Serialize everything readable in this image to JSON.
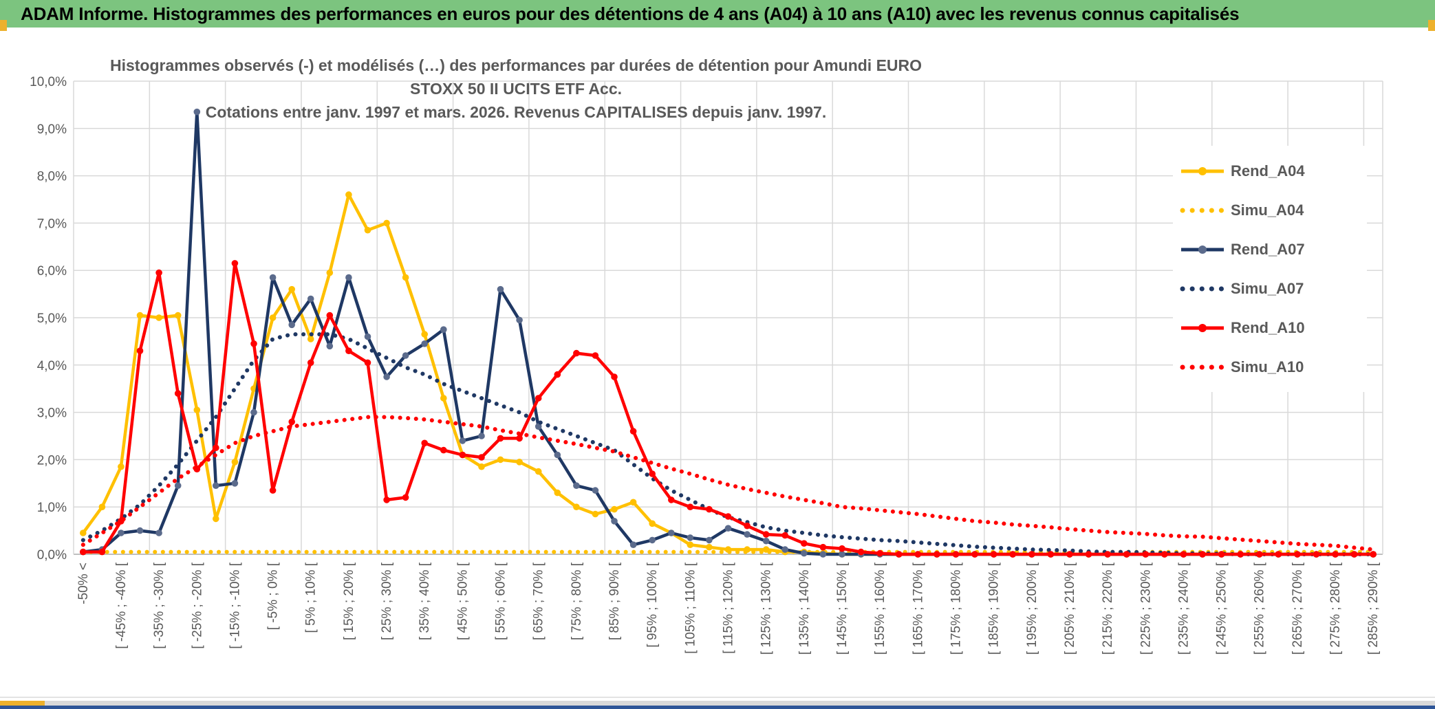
{
  "header": {
    "title": "ADAM Informe. Histogrammes des performances en euros pour des détentions de 4 ans (A04) à 10 ans (A10) avec les revenus connus capitalisés"
  },
  "chart_data": {
    "type": "line",
    "title_line1": "Histogrammes observés (-) et modélisés (…) des performances par durées de détention pour Amundi EURO STOXX 50 II UCITS ETF Acc.",
    "title_line2": "Cotations entre janv. 1997 et mars. 2026. Revenus CAPITALISES depuis janv. 1997.",
    "grid": true,
    "legend_position": "right-inside",
    "n_bins": 69,
    "ylim": [
      0,
      10
    ],
    "ytick_labels": [
      "0,0%",
      "1,0%",
      "2,0%",
      "3,0%",
      "4,0%",
      "5,0%",
      "6,0%",
      "7,0%",
      "8,0%",
      "9,0%",
      "10,0%"
    ],
    "xtick_every": 2,
    "xtick_labels": [
      "-50% <",
      "[ -45% ; -40% [",
      "[ -35% ; -30% [",
      "[ -25% ; -20% [",
      "[ -15% ; -10% [",
      "[ -5% ; 0% [",
      "[ 5% ; 10% [",
      "[ 15% ; 20% [",
      "[ 25% ; 30% [",
      "[ 35% ; 40% [",
      "[ 45% ; 50% [",
      "[ 55% ; 60% [",
      "[ 65% ; 70% [",
      "[ 75% ; 80% [",
      "[ 85% ; 90% [",
      "[ 95% ; 100% [",
      "[ 105% ; 110% [",
      "[ 115% ; 120% [",
      "[ 125% ; 130% [",
      "[ 135% ; 140% [",
      "[ 145% ; 150% [",
      "[ 155% ; 160% [",
      "[ 165% ; 170% [",
      "[ 175% ; 180% [",
      "[ 185% ; 190% [",
      "[ 195% ; 200% [",
      "[ 205% ; 210% [",
      "[ 215% ; 220% [",
      "[ 225% ; 230% [",
      "[ 235% ; 240% [",
      "[ 245% ; 250% [",
      "[ 255% ; 260% [",
      "[ 265% ; 270% [",
      "[ 275% ; 280% [",
      "[ 285% ; 290% ["
    ],
    "series": [
      {
        "name": "Rend_A04",
        "style": "solid",
        "color": "#FFC000",
        "marker_color": "#FFC000",
        "values": [
          0.45,
          1.0,
          1.85,
          5.05,
          5.0,
          5.05,
          3.05,
          0.75,
          1.95,
          3.5,
          5.0,
          5.6,
          4.55,
          5.95,
          7.6,
          6.85,
          7.0,
          5.85,
          4.65,
          3.3,
          2.1,
          1.85,
          2.0,
          1.95,
          1.75,
          1.3,
          1.0,
          0.85,
          0.95,
          1.1,
          0.65,
          0.45,
          0.2,
          0.15,
          0.1,
          0.1,
          0.1,
          0.05,
          0.05,
          0.02,
          0,
          0,
          0,
          0,
          0,
          0,
          0,
          0,
          0,
          0,
          0,
          0,
          0,
          0,
          0,
          0,
          0,
          0,
          0,
          0,
          0,
          0,
          0,
          0,
          0,
          0,
          0,
          0,
          0
        ]
      },
      {
        "name": "Simu_A04",
        "style": "dotted",
        "color": "#FFC000",
        "values": [
          0.05,
          0.05,
          0.05,
          0.05,
          0.05,
          0.05,
          0.05,
          0.05,
          0.05,
          0.05,
          0.05,
          0.05,
          0.05,
          0.05,
          0.05,
          0.05,
          0.05,
          0.05,
          0.05,
          0.05,
          0.05,
          0.05,
          0.05,
          0.05,
          0.05,
          0.05,
          0.05,
          0.05,
          0.05,
          0.05,
          0.05,
          0.05,
          0.05,
          0.05,
          0.05,
          0.05,
          0.05,
          0.05,
          0.05,
          0.05,
          0.05,
          0.05,
          0.05,
          0.05,
          0.05,
          0.05,
          0.05,
          0.05,
          0.05,
          0.05,
          0.05,
          0.05,
          0.05,
          0.05,
          0.05,
          0.05,
          0.05,
          0.05,
          0.05,
          0.05,
          0.05,
          0.05,
          0.05,
          0.05,
          0.05,
          0.05,
          0.05,
          0.05,
          0.05
        ]
      },
      {
        "name": "Rend_A07",
        "style": "solid",
        "color": "#1F3864",
        "marker_color": "#5B6B8C",
        "values": [
          0.05,
          0.1,
          0.45,
          0.5,
          0.45,
          1.45,
          9.35,
          1.45,
          1.5,
          3.0,
          5.85,
          4.85,
          5.4,
          4.4,
          5.85,
          4.6,
          3.75,
          4.2,
          4.45,
          4.75,
          2.4,
          2.5,
          5.6,
          4.95,
          2.7,
          2.1,
          1.45,
          1.35,
          0.7,
          0.2,
          0.3,
          0.45,
          0.35,
          0.3,
          0.55,
          0.42,
          0.28,
          0.1,
          0.02,
          0,
          0,
          0,
          0,
          0,
          0,
          0,
          0,
          0,
          0,
          0,
          0,
          0,
          0,
          0,
          0,
          0,
          0,
          0,
          0,
          0,
          0,
          0,
          0,
          0,
          0,
          0,
          0,
          0,
          0
        ]
      },
      {
        "name": "Simu_A07",
        "style": "dotted",
        "color": "#1F3864",
        "values": [
          0.3,
          0.5,
          0.75,
          1.05,
          1.45,
          1.9,
          2.4,
          2.9,
          3.5,
          4.1,
          4.55,
          4.65,
          4.65,
          4.65,
          4.55,
          4.35,
          4.15,
          3.95,
          3.8,
          3.6,
          3.45,
          3.3,
          3.15,
          3.0,
          2.8,
          2.65,
          2.5,
          2.35,
          2.2,
          1.9,
          1.6,
          1.35,
          1.15,
          0.95,
          0.78,
          0.68,
          0.57,
          0.5,
          0.45,
          0.4,
          0.36,
          0.33,
          0.3,
          0.28,
          0.25,
          0.22,
          0.19,
          0.16,
          0.14,
          0.12,
          0.1,
          0.09,
          0.08,
          0.06,
          0.05,
          0.05,
          0.04,
          0.03,
          0.02,
          0.02,
          0.01,
          0,
          0,
          0,
          0,
          0,
          0,
          0,
          0
        ]
      },
      {
        "name": "Rend_A10",
        "style": "solid",
        "color": "#FF0000",
        "marker_color": "#FF0000",
        "values": [
          0.05,
          0.05,
          0.7,
          4.3,
          5.95,
          3.4,
          1.8,
          2.25,
          6.15,
          4.45,
          1.35,
          2.8,
          4.05,
          5.05,
          4.3,
          4.05,
          1.15,
          1.2,
          2.35,
          2.2,
          2.1,
          2.05,
          2.45,
          2.45,
          3.3,
          3.8,
          4.25,
          4.2,
          3.75,
          2.6,
          1.7,
          1.15,
          1.0,
          0.95,
          0.8,
          0.6,
          0.42,
          0.4,
          0.23,
          0.15,
          0.12,
          0.05,
          0.02,
          0,
          0,
          0,
          0,
          0,
          0,
          0,
          0,
          0,
          0,
          0,
          0,
          0,
          0,
          0,
          0,
          0,
          0,
          0,
          0,
          0,
          0,
          0,
          0,
          0,
          0
        ]
      },
      {
        "name": "Simu_A10",
        "style": "dotted",
        "color": "#FF0000",
        "values": [
          0.2,
          0.45,
          0.7,
          1.0,
          1.3,
          1.6,
          1.85,
          2.1,
          2.35,
          2.5,
          2.6,
          2.7,
          2.75,
          2.8,
          2.85,
          2.9,
          2.9,
          2.88,
          2.85,
          2.8,
          2.75,
          2.7,
          2.62,
          2.55,
          2.47,
          2.4,
          2.33,
          2.25,
          2.17,
          2.05,
          1.93,
          1.81,
          1.7,
          1.58,
          1.47,
          1.38,
          1.3,
          1.22,
          1.15,
          1.08,
          1.0,
          0.97,
          0.93,
          0.89,
          0.85,
          0.8,
          0.75,
          0.7,
          0.67,
          0.63,
          0.6,
          0.57,
          0.53,
          0.5,
          0.47,
          0.45,
          0.43,
          0.4,
          0.38,
          0.37,
          0.34,
          0.31,
          0.28,
          0.25,
          0.22,
          0.2,
          0.18,
          0.14,
          0.1
        ]
      }
    ],
    "colors": {
      "gold": "#FFC000",
      "navy": "#1F3864",
      "navy_marker": "#5B6B8C",
      "red": "#FF0000",
      "grid": "#D9D9D9",
      "axis": "#BFBFBF",
      "text": "#595959",
      "header_green": "#7CC47F",
      "accent_gold": "#EDB12C",
      "bottom_blue": "#2E5597"
    }
  }
}
